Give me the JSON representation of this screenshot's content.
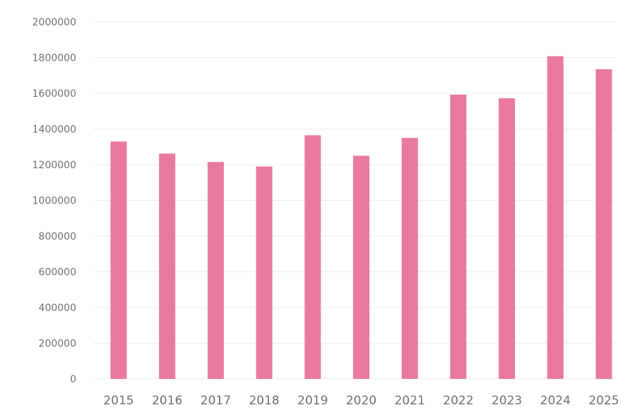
{
  "chart_data": {
    "type": "bar",
    "categories": [
      "2015",
      "2016",
      "2017",
      "2018",
      "2019",
      "2020",
      "2021",
      "2022",
      "2023",
      "2024",
      "2025"
    ],
    "values": [
      1330000,
      1262000,
      1215000,
      1190000,
      1365000,
      1250000,
      1350000,
      1593000,
      1572000,
      1808000,
      1735000
    ],
    "title": "",
    "xlabel": "",
    "ylabel": "",
    "ylim": [
      0,
      2000000
    ],
    "yticks": [
      "0",
      "200000",
      "400000",
      "600000",
      "800000",
      "1000000",
      "1200000",
      "1400000",
      "1600000",
      "1800000",
      "2000000"
    ],
    "grid": true,
    "legend": "none",
    "colors": {
      "bar": "#e9799f",
      "grid": "#ededed",
      "axis_text": "#6f6f6f"
    }
  }
}
